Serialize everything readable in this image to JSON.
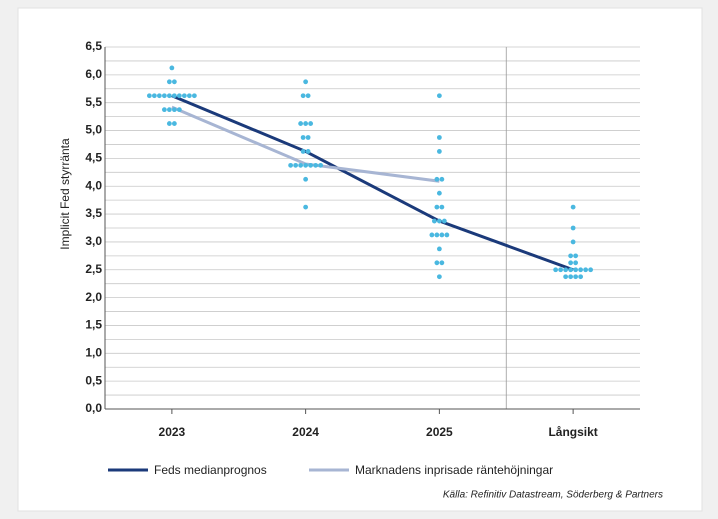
{
  "chart_data": {
    "type": "dotplot",
    "y_label": "Implicit Fed styrränta",
    "categories": [
      "2023",
      "2024",
      "2025",
      "Långsikt"
    ],
    "ylim": [
      0,
      6.5
    ],
    "yticks": [
      {
        "value": 0,
        "label": "0,0"
      },
      {
        "value": 0.5,
        "label": "0,5"
      },
      {
        "value": 1,
        "label": "1,0"
      },
      {
        "value": 1.5,
        "label": "1,5"
      },
      {
        "value": 2,
        "label": "2,0"
      },
      {
        "value": 2.5,
        "label": "2,5"
      },
      {
        "value": 3,
        "label": "3,0"
      },
      {
        "value": 3.5,
        "label": "3,5"
      },
      {
        "value": 4,
        "label": "4,0"
      },
      {
        "value": 4.5,
        "label": "4,5"
      },
      {
        "value": 5,
        "label": "5,0"
      },
      {
        "value": 5.5,
        "label": "5,5"
      },
      {
        "value": 6,
        "label": "6,0"
      },
      {
        "value": 6.5,
        "label": "6,5"
      }
    ],
    "minor_yticks": [
      0.25,
      0.75,
      1.25,
      1.75,
      2.25,
      2.75,
      3.25,
      3.75,
      4.25,
      4.75,
      5.25,
      5.75,
      6.25
    ],
    "grid": true,
    "dot_color": "#4ab8e0",
    "dots": [
      [
        6.125,
        5.875,
        5.875,
        5.625,
        5.625,
        5.625,
        5.625,
        5.625,
        5.625,
        5.625,
        5.625,
        5.625,
        5.625,
        5.375,
        5.375,
        5.375,
        5.375,
        5.125,
        5.125
      ],
      [
        5.875,
        5.625,
        5.625,
        5.125,
        5.125,
        5.125,
        4.875,
        4.875,
        4.625,
        4.625,
        4.375,
        4.375,
        4.375,
        4.375,
        4.375,
        4.375,
        4.375,
        4.125,
        3.625
      ],
      [
        5.625,
        4.875,
        4.625,
        4.125,
        4.125,
        3.875,
        3.625,
        3.625,
        3.375,
        3.375,
        3.375,
        3.125,
        3.125,
        3.125,
        3.125,
        2.875,
        2.625,
        2.625,
        2.375
      ],
      [
        3.625,
        3.25,
        3.0,
        2.75,
        2.75,
        2.625,
        2.625,
        2.5,
        2.5,
        2.5,
        2.5,
        2.5,
        2.5,
        2.5,
        2.5,
        2.375,
        2.375,
        2.375,
        2.375
      ]
    ],
    "series": [
      {
        "name": "Feds medianprognos",
        "color": "#1b3a7a",
        "values": [
          5.625,
          4.625,
          3.375,
          2.5
        ]
      },
      {
        "name": "Marknadens inprisade räntehöjningar",
        "color": "#a7b5d3",
        "values": [
          5.42,
          4.4,
          4.09,
          null
        ]
      }
    ],
    "source": "Källa: Refinitiv Datastream, Söderberg & Partners"
  }
}
